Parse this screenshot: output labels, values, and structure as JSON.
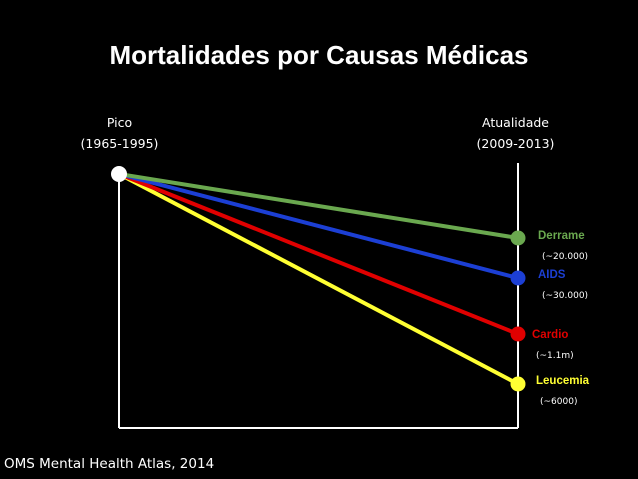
{
  "title": "Mortalidades por Causas Médicas",
  "source": "OMS Mental Health Atlas, 2014",
  "colors": {
    "background": "#000000",
    "axis": "#ffffff"
  },
  "chart_data": {
    "type": "line",
    "x": [
      {
        "label": "Pico",
        "sublabel": "(1965-1995)"
      },
      {
        "label": "Atualidade",
        "sublabel": "(2009-2013)"
      }
    ],
    "start_point": {
      "color": "#ffffff"
    },
    "series": [
      {
        "name": "Derrame",
        "value_label": "(~20.000)",
        "color": "#6aa84f",
        "label_color": "#6aa84f",
        "end_rank": 1
      },
      {
        "name": "AIDS",
        "value_label": "(~30.000)",
        "color": "#1c3fd4",
        "label_color": "#1c3fd4",
        "end_rank": 2
      },
      {
        "name": "Cardio",
        "value_label": "(~1.1m)",
        "color": "#e00000",
        "label_color": "#e00000",
        "end_rank": 3
      },
      {
        "name": "Leucemia",
        "value_label": "(~6000)",
        "color": "#ffff33",
        "label_color": "#ffff33",
        "end_rank": 4
      }
    ]
  }
}
